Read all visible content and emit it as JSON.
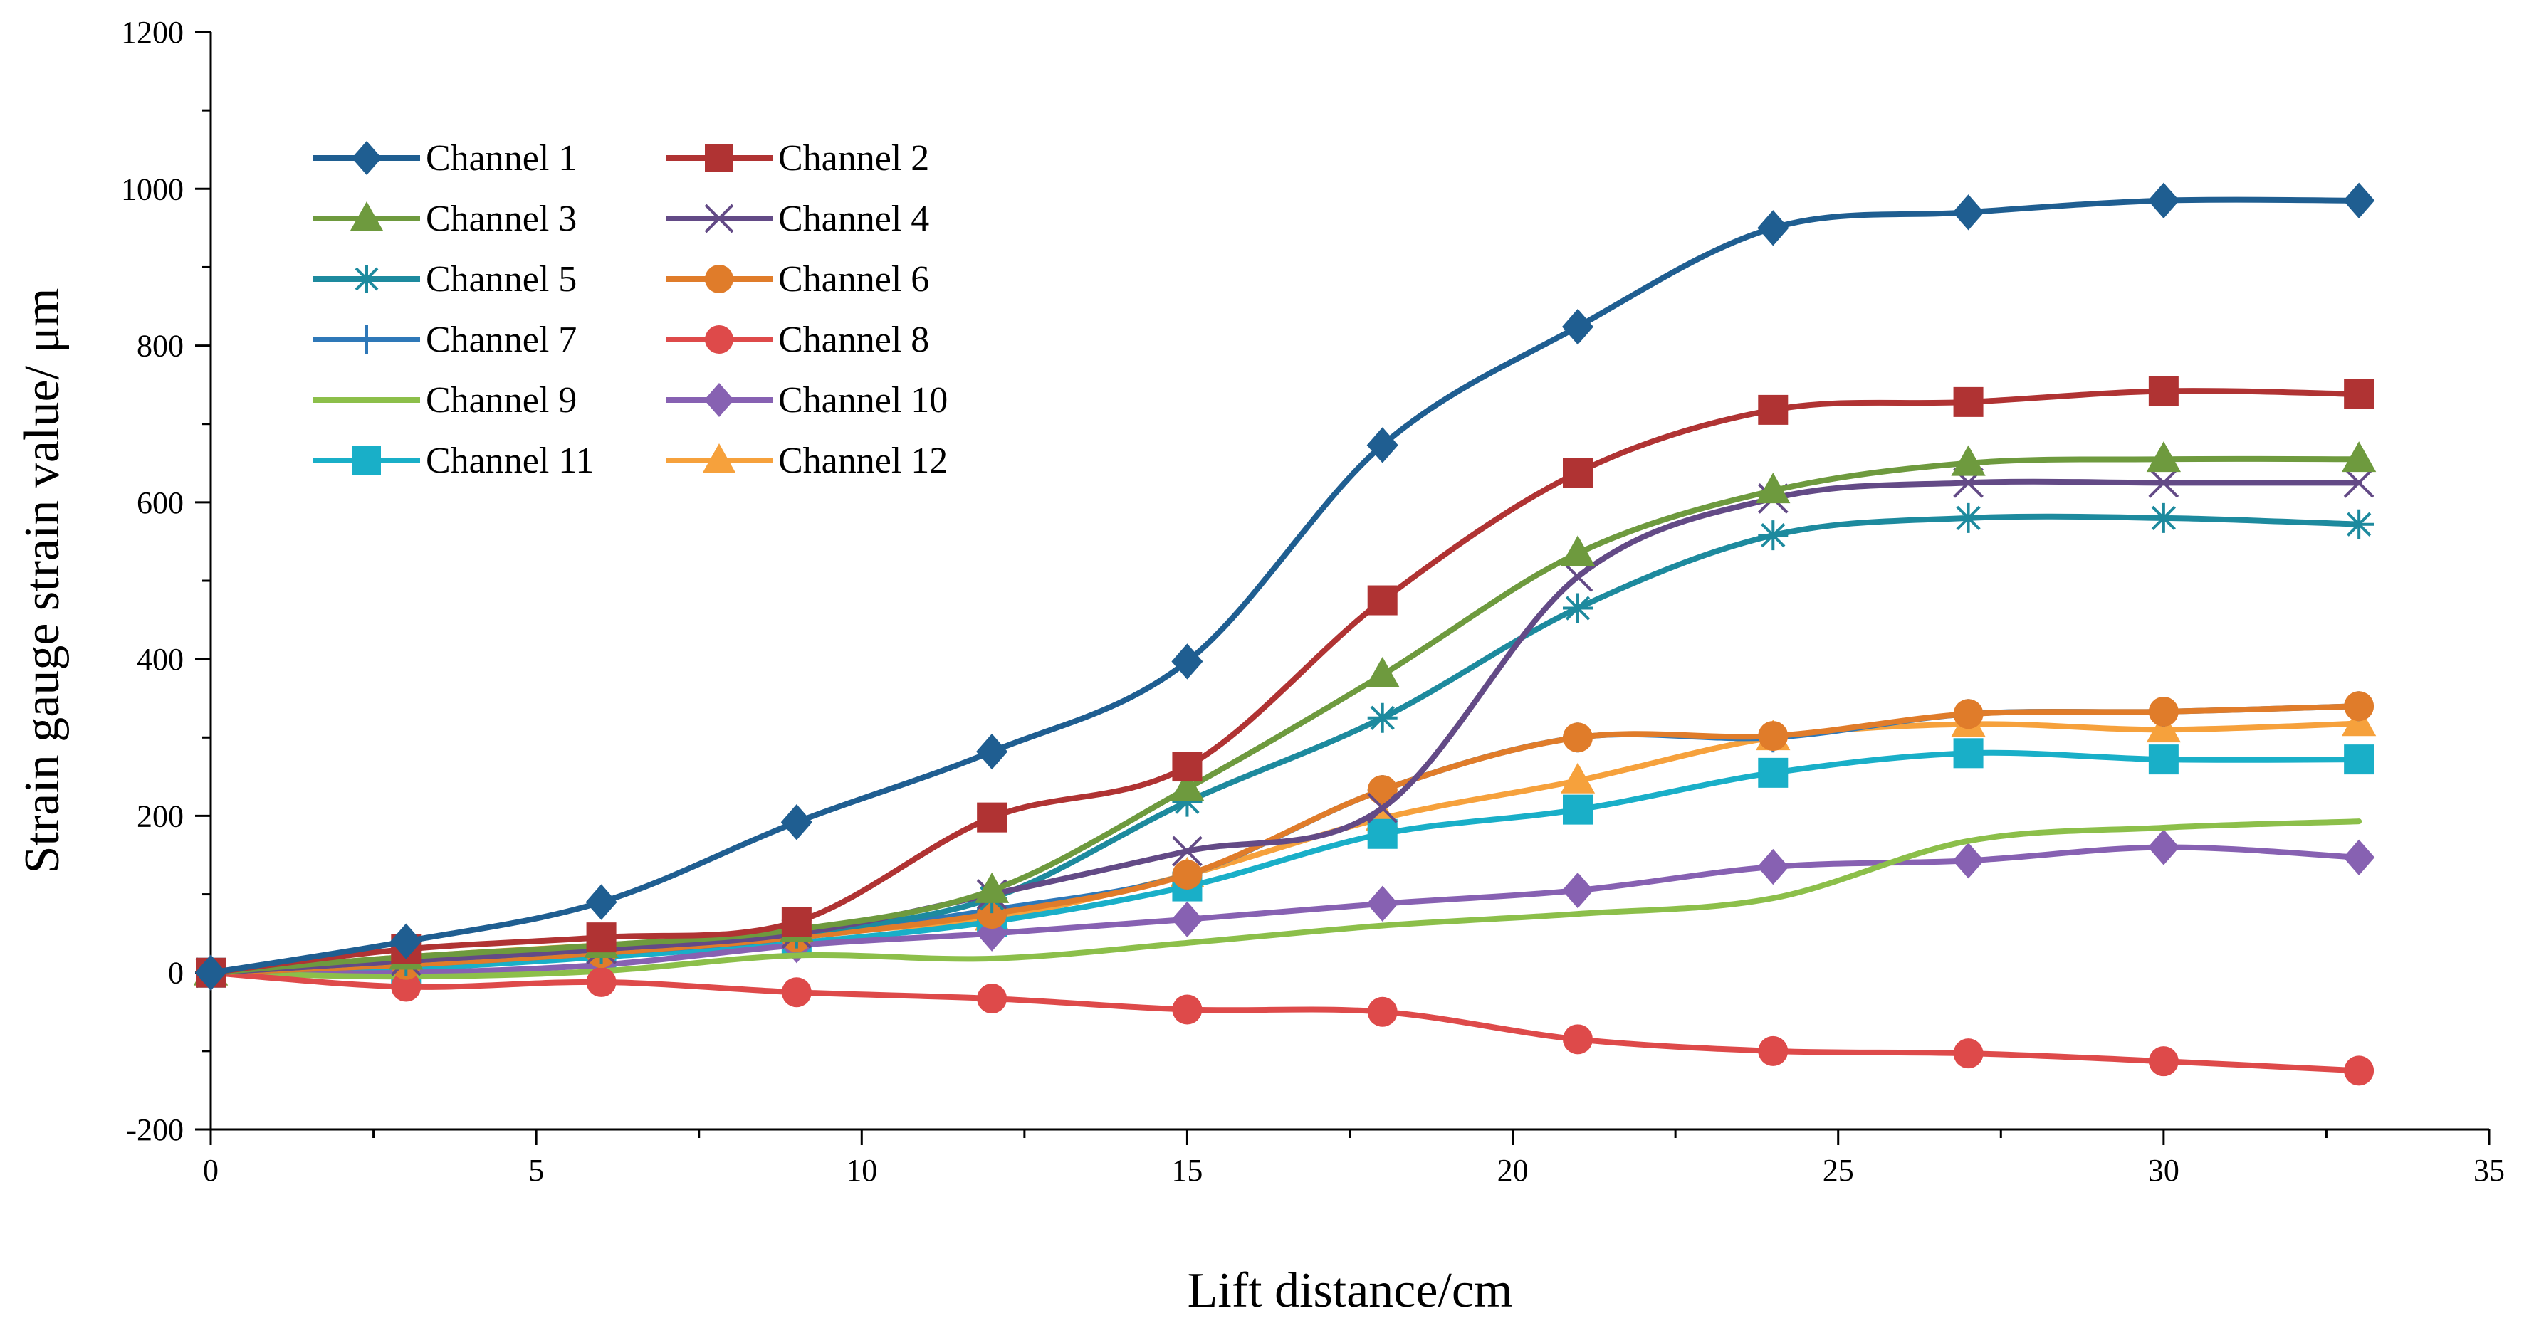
{
  "chart_data": {
    "type": "line",
    "title": "",
    "xlabel": "Lift distance/cm",
    "ylabel": "Strain gauge strain value/ μm",
    "xlim": [
      0,
      35
    ],
    "ylim": [
      -200,
      1200
    ],
    "x_ticks": [
      "0",
      "5",
      "10",
      "15",
      "20",
      "25",
      "30",
      "35"
    ],
    "y_ticks": [
      "-200",
      "0",
      "200",
      "400",
      "600",
      "800",
      "1000",
      "1200"
    ],
    "grid": false,
    "legend_position": "top-left",
    "x": [
      0,
      3,
      6,
      9,
      12,
      15,
      18,
      21,
      24,
      27,
      30,
      33
    ],
    "series": [
      {
        "name": "Channel 1",
        "color": "#1F5E91",
        "marker": "diamond",
        "values": [
          0,
          40,
          90,
          192,
          282,
          397,
          673,
          824,
          950,
          970,
          985,
          985
        ]
      },
      {
        "name": "Channel 2",
        "color": "#B03333",
        "marker": "square",
        "values": [
          0,
          30,
          45,
          65,
          198,
          263,
          475,
          638,
          718,
          728,
          742,
          738
        ]
      },
      {
        "name": "Channel 3",
        "color": "#6E9A3E",
        "marker": "triangle",
        "values": [
          0,
          20,
          35,
          55,
          105,
          235,
          380,
          535,
          615,
          650,
          655,
          655
        ]
      },
      {
        "name": "Channel 4",
        "color": "#634A86",
        "marker": "x",
        "values": [
          0,
          15,
          30,
          50,
          100,
          155,
          210,
          505,
          605,
          625,
          625,
          625
        ]
      },
      {
        "name": "Channel 5",
        "color": "#1D8A9E",
        "marker": "asterisk",
        "values": [
          0,
          15,
          30,
          50,
          95,
          218,
          325,
          465,
          558,
          580,
          580,
          572
        ]
      },
      {
        "name": "Channel 6",
        "color": "#E07C2A",
        "marker": "circle",
        "values": [
          0,
          10,
          25,
          45,
          75,
          125,
          233,
          300,
          302,
          330,
          333,
          340
        ]
      },
      {
        "name": "Channel 7",
        "color": "#2E78B8",
        "marker": "plus",
        "values": [
          0,
          10,
          25,
          45,
          80,
          125,
          233,
          300,
          300,
          330,
          333,
          340
        ]
      },
      {
        "name": "Channel 8",
        "color": "#DE4A4A",
        "marker": "circle",
        "values": [
          0,
          -18,
          -12,
          -25,
          -33,
          -47,
          -50,
          -85,
          -100,
          -103,
          -113,
          -125
        ]
      },
      {
        "name": "Channel 9",
        "color": "#8CBF4A",
        "marker": "none",
        "values": [
          0,
          -5,
          2,
          22,
          18,
          38,
          60,
          75,
          95,
          168,
          185,
          193
        ]
      },
      {
        "name": "Channel 10",
        "color": "#8761B2",
        "marker": "diamond",
        "values": [
          0,
          0,
          10,
          35,
          50,
          68,
          88,
          105,
          135,
          143,
          160,
          147
        ]
      },
      {
        "name": "Channel 11",
        "color": "#19AFC8",
        "marker": "square",
        "values": [
          0,
          5,
          20,
          38,
          65,
          110,
          177,
          208,
          255,
          280,
          272,
          272
        ]
      },
      {
        "name": "Channel 12",
        "color": "#F6A13C",
        "marker": "triangle",
        "values": [
          0,
          20,
          35,
          50,
          70,
          125,
          197,
          245,
          300,
          317,
          310,
          318
        ]
      }
    ]
  }
}
